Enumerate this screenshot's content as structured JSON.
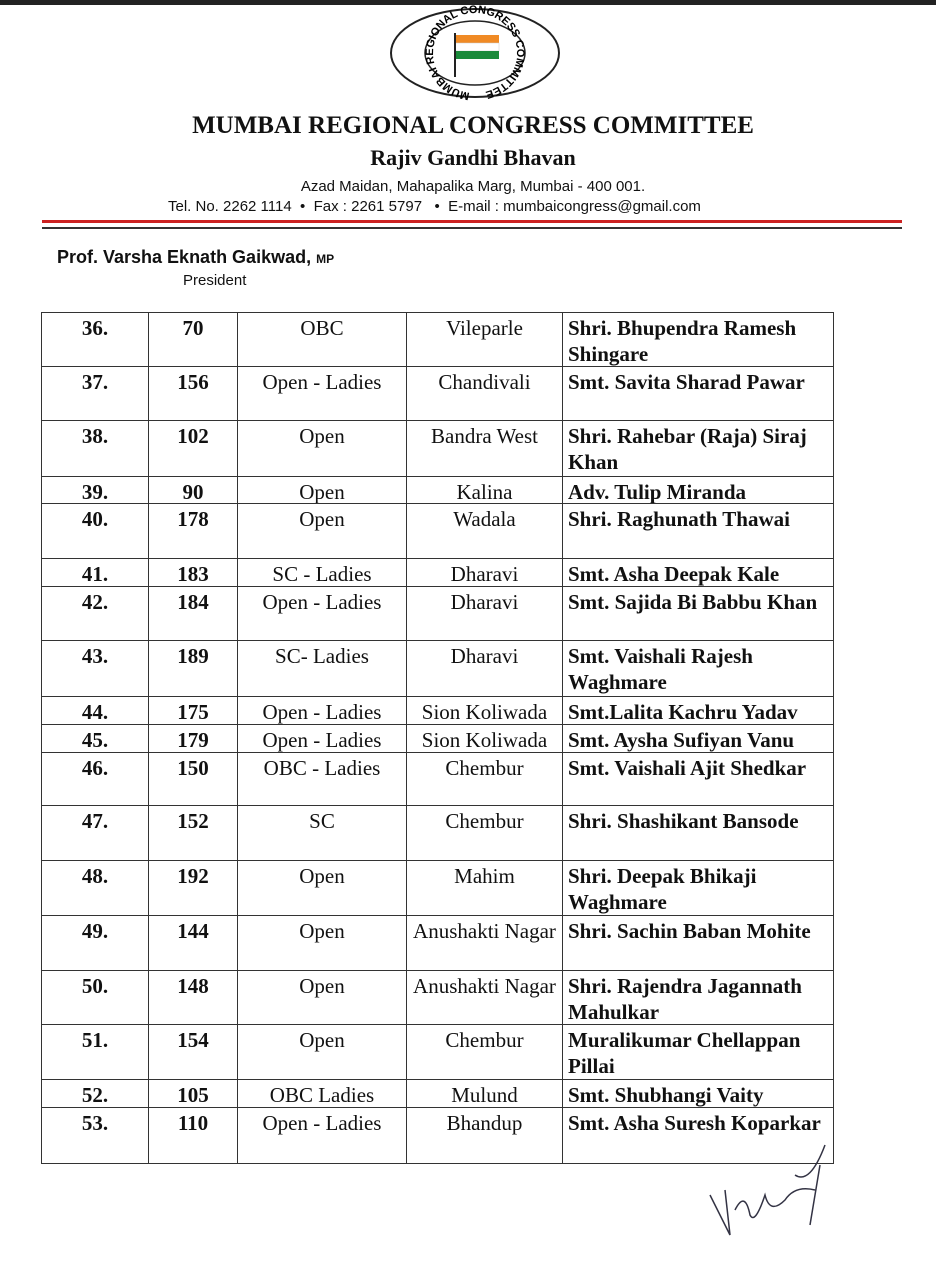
{
  "header": {
    "logo_text": "MUMBAI REGIONAL CONGRESS COMMITTEE",
    "title": "MUMBAI REGIONAL CONGRESS COMMITTEE",
    "subtitle": "Rajiv Gandhi Bhavan",
    "address": "Azad Maidan, Mahapalika Marg, Mumbai - 400 001.",
    "contact": "Tel. No. 2262 1114  •  Fax : 2261 5797   •  E-mail : mumbaicongress@gmail.com"
  },
  "president": {
    "name": "Prof. Varsha Eknath Gaikwad,",
    "suffix": "MP",
    "role": "President"
  },
  "table": {
    "rows": [
      [
        "36.",
        "70",
        "OBC",
        "Vileparle",
        "Shri. Bhupendra Ramesh Shingare"
      ],
      [
        "37.",
        "156",
        "Open - Ladies",
        "Chandivali",
        "Smt. Savita Sharad Pawar"
      ],
      [
        "38.",
        "102",
        "Open",
        "Bandra West",
        "Shri. Rahebar (Raja) Siraj Khan"
      ],
      [
        "39.",
        "90",
        "Open",
        "Kalina",
        "Adv. Tulip Miranda"
      ],
      [
        "40.",
        "178",
        "Open",
        "Wadala",
        "Shri. Raghunath Thawai"
      ],
      [
        "41.",
        "183",
        "SC - Ladies",
        "Dharavi",
        "Smt. Asha Deepak Kale"
      ],
      [
        "42.",
        "184",
        "Open - Ladies",
        "Dharavi",
        "Smt. Sajida Bi Babbu Khan"
      ],
      [
        "43.",
        "189",
        "SC- Ladies",
        "Dharavi",
        "Smt. Vaishali Rajesh Waghmare"
      ],
      [
        "44.",
        "175",
        "Open - Ladies",
        "Sion Koliwada",
        "Smt.Lalita Kachru Yadav"
      ],
      [
        "45.",
        "179",
        "Open - Ladies",
        "Sion Koliwada",
        "Smt. Aysha Sufiyan Vanu"
      ],
      [
        "46.",
        "150",
        "OBC - Ladies",
        "Chembur",
        "Smt. Vaishali Ajit Shedkar"
      ],
      [
        "47.",
        "152",
        "SC",
        "Chembur",
        "Shri. Shashikant Bansode"
      ],
      [
        "48.",
        "192",
        "Open",
        "Mahim",
        "Shri. Deepak Bhikaji Waghmare"
      ],
      [
        "49.",
        "144",
        "Open",
        "Anushakti Nagar",
        "Shri. Sachin Baban Mohite"
      ],
      [
        "50.",
        "148",
        "Open",
        "Anushakti Nagar",
        "Shri. Rajendra Jagannath Mahulkar"
      ],
      [
        "51.",
        "154",
        "Open",
        "Chembur",
        "Muralikumar Chellappan Pillai"
      ],
      [
        "52.",
        "105",
        "OBC Ladies",
        "Mulund",
        "Smt. Shubhangi Vaity"
      ],
      [
        "53.",
        "110",
        "Open - Ladies",
        "Bhandup",
        "Smt. Asha Suresh Koparkar"
      ]
    ]
  }
}
